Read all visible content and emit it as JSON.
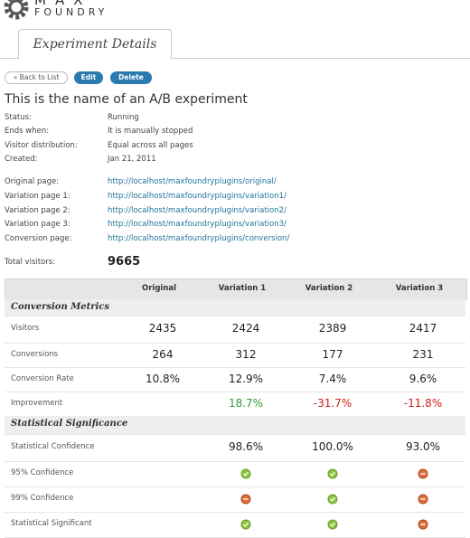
{
  "logo": {
    "name": "MAX",
    "sub": "FOUNDRY"
  },
  "tab": "Experiment Details",
  "buttons": [
    "« Back to List",
    "Edit",
    "Delete"
  ],
  "title": "This is the name of an A/B experiment",
  "details": [
    [
      "Status:",
      "Running"
    ],
    [
      "Ends when:",
      "It is manually stopped"
    ],
    [
      "Visitor distribution:",
      "Equal across all pages"
    ],
    [
      "Created:",
      "Jan 21, 2011"
    ]
  ],
  "pages": [
    [
      "Original page:",
      "http://localhost/maxfoundryplugins/original/"
    ],
    [
      "Variation page 1:",
      "http://localhost/maxfoundryplugins/variation1/"
    ],
    [
      "Variation page 2:",
      "http://localhost/maxfoundryplugins/variation2/"
    ],
    [
      "Variation page 3:",
      "http://localhost/maxfoundryplugins/variation3/"
    ],
    [
      "Conversion page:",
      "http://localhost/maxfoundryplugins/conversion/"
    ]
  ],
  "total": {
    "label": "Total visitors:",
    "value": 9665
  },
  "table": {
    "columns": [
      "Original",
      "Variation 1",
      "Variation 2",
      "Variation 3"
    ],
    "rows": [
      {
        "section": "Conversion Metrics"
      },
      {
        "label": "Visitors",
        "cells": [
          "2435",
          "2424",
          "2389",
          "2417"
        ]
      },
      {
        "label": "Conversions",
        "cells": [
          "264",
          "312",
          "177",
          "231"
        ]
      },
      {
        "label": "Conversion Rate",
        "cells": [
          "10.8%",
          "12.9%",
          "7.4%",
          "9.6%"
        ]
      },
      {
        "label": "Improvement",
        "cells": [
          null,
          "18.7%",
          "-31.7%",
          "-11.8%"
        ]
      },
      {
        "section": "Statistical Significance"
      },
      {
        "label": "Statistical Confidence",
        "cells": [
          null,
          "98.6%",
          "100.0%",
          "93.0%"
        ]
      },
      {
        "label": "95% Confidence"
      },
      {
        "label": "99% Confidence"
      },
      {
        "label": "Statistical Significant"
      }
    ]
  }
}
